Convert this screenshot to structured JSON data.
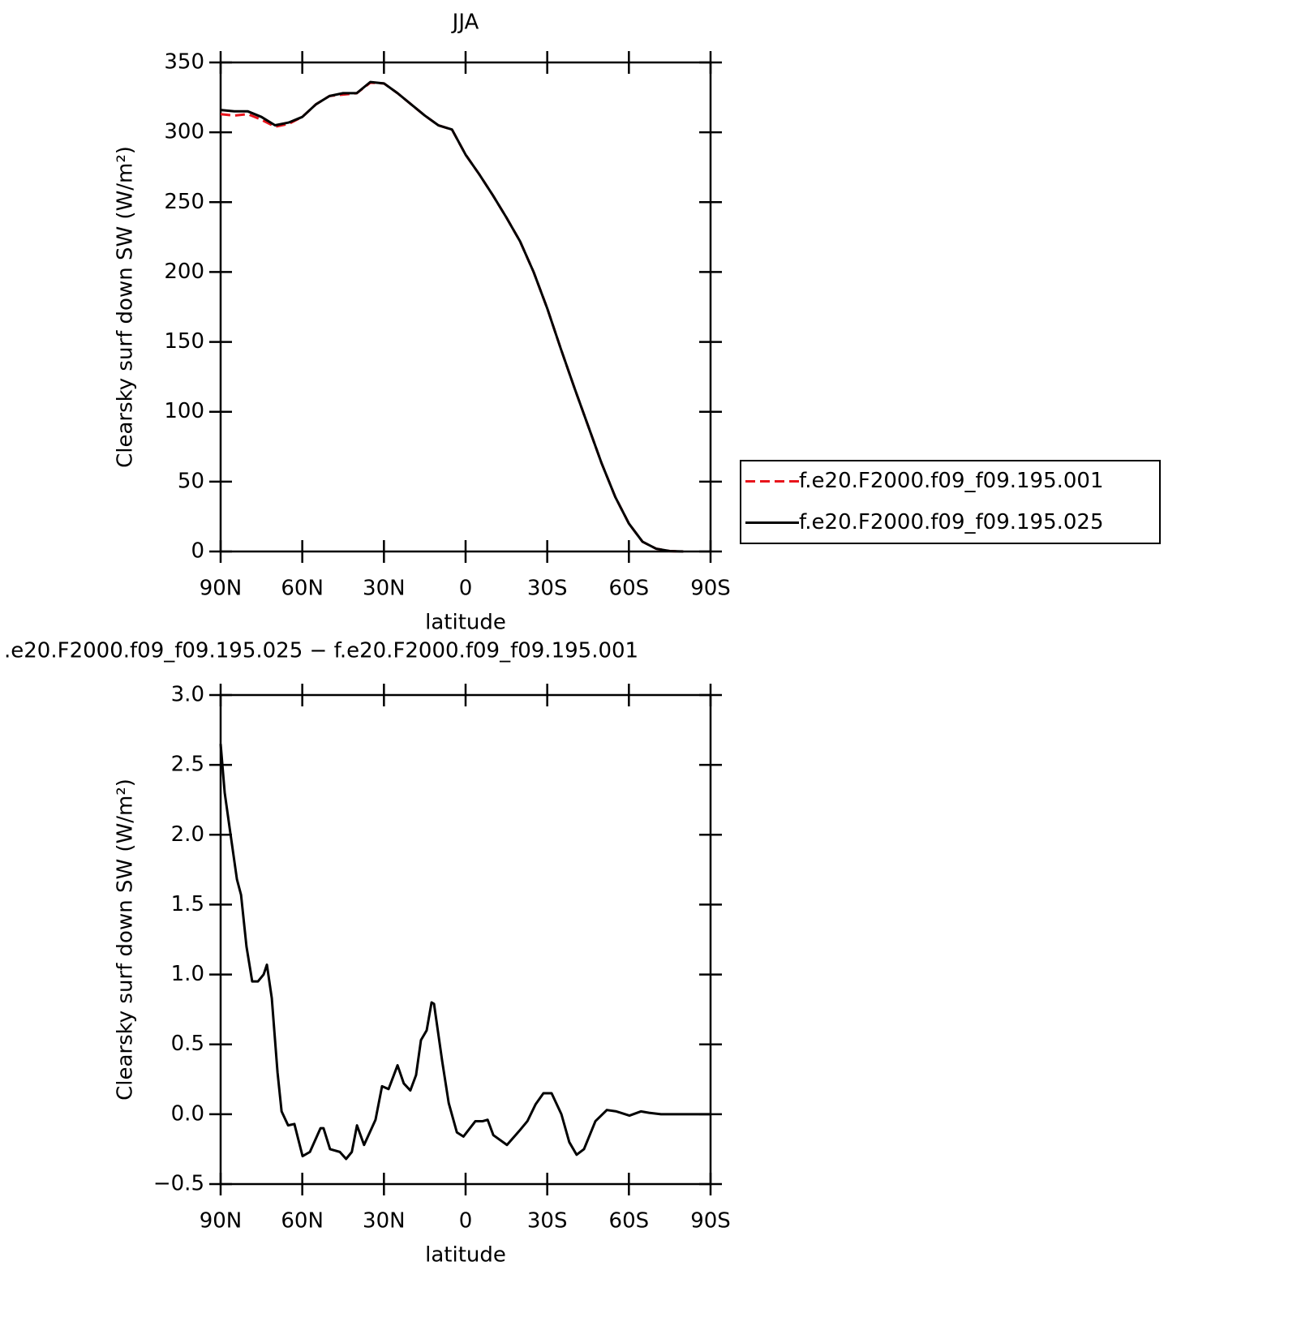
{
  "chart_data": [
    {
      "type": "line",
      "title": "JJA",
      "xlabel": "latitude",
      "ylabel": "Clearsky surf down SW (W/m²)",
      "x": [
        90,
        85,
        80,
        75,
        70,
        65,
        60,
        55,
        50,
        45,
        40,
        35,
        30,
        25,
        20,
        15,
        10,
        5,
        0,
        -5,
        -10,
        -15,
        -20,
        -25,
        -30,
        -35,
        -40,
        -45,
        -50,
        -55,
        -60,
        -65,
        -70,
        -75,
        -80
      ],
      "series": [
        {
          "name": "f.e20.F2000.f09_f09.195.001",
          "color": "#e8141c",
          "dash": true,
          "values": [
            313,
            312,
            313,
            309,
            304,
            306,
            311,
            320,
            326,
            327,
            328,
            335.5,
            335,
            328,
            320,
            312,
            305,
            302,
            284,
            270,
            255,
            239,
            222,
            200,
            174,
            145,
            117,
            90,
            63,
            39,
            20,
            7,
            2,
            0.3,
            0
          ]
        },
        {
          "name": "f.e20.F2000.f09_f09.195.025",
          "color": "#000000",
          "dash": false,
          "values": [
            316,
            315,
            315,
            311,
            305,
            307,
            311,
            320,
            326,
            328,
            328,
            336,
            335,
            328,
            320,
            312,
            305,
            302,
            284,
            270,
            255,
            239,
            222,
            200,
            174,
            145,
            117,
            90,
            63,
            39,
            20,
            7,
            2,
            0.3,
            0
          ]
        }
      ],
      "xlim": [
        90,
        -90
      ],
      "xticks": [
        {
          "value": 90,
          "label": "90N"
        },
        {
          "value": 60,
          "label": "60N"
        },
        {
          "value": 30,
          "label": "30N"
        },
        0,
        {
          "value": -30,
          "label": "30S"
        },
        {
          "value": -60,
          "label": "60S"
        },
        {
          "value": -90,
          "label": "90S"
        }
      ],
      "ylim": [
        0,
        350
      ],
      "yticks": [
        0,
        50,
        100,
        150,
        200,
        250,
        300,
        350
      ],
      "legend": "outside-right"
    },
    {
      "type": "line",
      "title": ".e20.F2000.f09_f09.195.025 − f.e20.F2000.f09_f09.195.001",
      "xlabel": "latitude",
      "ylabel": "Clearsky surf down SW (W/m²)",
      "x": [
        90,
        88.5,
        86.7,
        84,
        82.5,
        80.5,
        78.4,
        76.3,
        74.2,
        73,
        71.2,
        69.1,
        67.6,
        65.2,
        62.9,
        59.9,
        57.2,
        53.3,
        52.2,
        49.8,
        46.2,
        43.9,
        41.8,
        39.9,
        37.3,
        33.1,
        30.7,
        28.3,
        25,
        22.7,
        20.3,
        18.2,
        16.4,
        14.3,
        12.5,
        11.6,
        8.6,
        6.2,
        3.2,
        0.8,
        -3.6,
        -6.3,
        -8.1,
        -10.2,
        -15.2,
        -19.7,
        -22.7,
        -25.7,
        -28.6,
        -31.6,
        -35.2,
        -38.1,
        -40.8,
        -43.5,
        -47.7,
        -51.9,
        -55.4,
        -60.2,
        -64.4,
        -67.4,
        -71.8,
        -90
      ],
      "series": [
        {
          "color": "#000000",
          "dash": false,
          "values": [
            2.65,
            2.3,
            2.05,
            1.68,
            1.57,
            1.2,
            0.95,
            0.95,
            1.0,
            1.07,
            0.83,
            0.3,
            0.02,
            -0.08,
            -0.07,
            -0.3,
            -0.27,
            -0.1,
            -0.1,
            -0.25,
            -0.27,
            -0.32,
            -0.27,
            -0.08,
            -0.22,
            -0.04,
            0.2,
            0.18,
            0.35,
            0.22,
            0.17,
            0.28,
            0.53,
            0.6,
            0.8,
            0.79,
            0.38,
            0.08,
            -0.13,
            -0.16,
            -0.05,
            -0.05,
            -0.04,
            -0.15,
            -0.22,
            -0.12,
            -0.05,
            0.07,
            0.15,
            0.15,
            0.0,
            -0.2,
            -0.29,
            -0.25,
            -0.05,
            0.03,
            0.02,
            -0.01,
            0.02,
            0.01,
            0,
            0
          ]
        }
      ],
      "xlim": [
        90,
        -90
      ],
      "xticks": [
        {
          "value": 90,
          "label": "90N"
        },
        {
          "value": 60,
          "label": "60N"
        },
        {
          "value": 30,
          "label": "30N"
        },
        0,
        {
          "value": -30,
          "label": "30S"
        },
        {
          "value": -60,
          "label": "60S"
        },
        {
          "value": -90,
          "label": "90S"
        }
      ],
      "ylim": [
        -0.5,
        3.0
      ],
      "yticks": [
        {
          "value": -0.5,
          "label": "−0.5"
        },
        {
          "value": 0,
          "label": "0.0"
        },
        {
          "value": 0.5,
          "label": "0.5"
        },
        {
          "value": 1,
          "label": "1.0"
        },
        {
          "value": 1.5,
          "label": "1.5"
        },
        {
          "value": 2,
          "label": "2.0"
        },
        {
          "value": 2.5,
          "label": "2.5"
        },
        {
          "value": 3,
          "label": "3.0"
        }
      ]
    }
  ]
}
